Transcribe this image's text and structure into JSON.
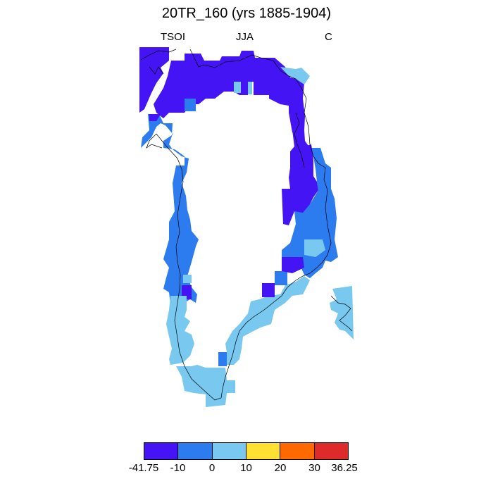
{
  "title": "20TR_160 (yrs 1885-1904)",
  "subtitle": {
    "left": "TSOI",
    "center": "JJA",
    "right": "C"
  },
  "colors": {
    "dark_blue": "#4414f5",
    "mid_blue": "#2c7bef",
    "light_blue": "#78c8f0",
    "yellow": "#ffe033",
    "orange": "#ff6a00",
    "red": "#dd2a2a",
    "coast": "#000000"
  },
  "colorbar": {
    "bins": [
      "dark_blue",
      "mid_blue",
      "light_blue",
      "yellow",
      "orange",
      "red"
    ],
    "labels": [
      "-41.75",
      "-10",
      "0",
      "10",
      "20",
      "30",
      "36.25"
    ]
  }
}
